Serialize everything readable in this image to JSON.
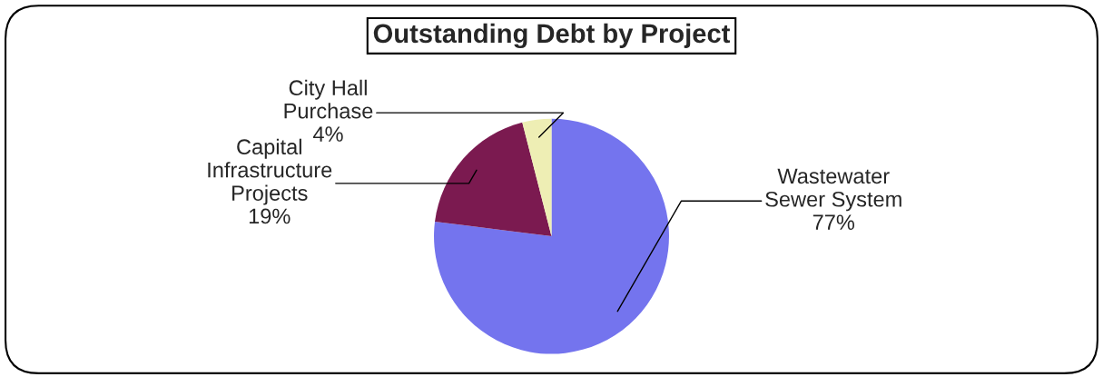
{
  "chart_data": {
    "type": "pie",
    "title": "Outstanding Debt by Project",
    "categories": [
      "Wastewater\nSewer System",
      "Capital\nInfrastructure\nProjects",
      "City Hall\nPurchase"
    ],
    "values": [
      77,
      19,
      4
    ],
    "value_labels": [
      "77%",
      "19%",
      "4%"
    ],
    "colors": [
      "#7474ee",
      "#7b1a50",
      "#eeeeb4"
    ],
    "legend": false
  }
}
